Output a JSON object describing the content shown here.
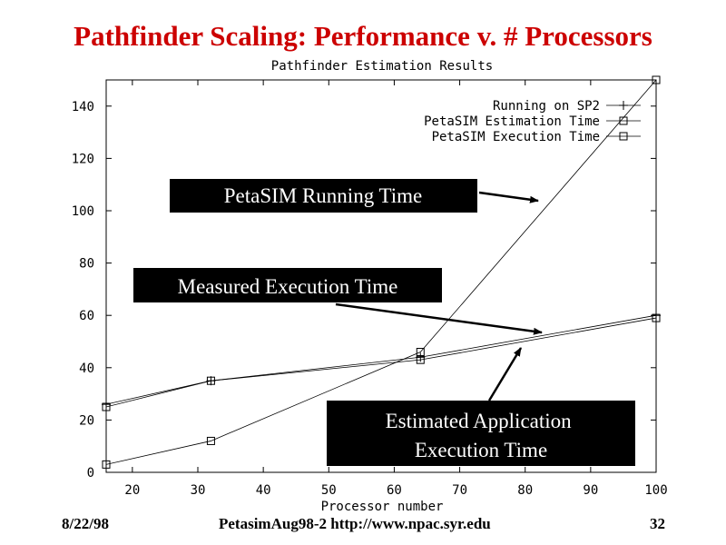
{
  "slide": {
    "title": "Pathfinder Scaling: Performance v. # Processors",
    "footer_date": "8/22/98",
    "footer_center": "PetasimAug98-2  http://www.npac.syr.edu",
    "page_number": "32"
  },
  "chart_data": {
    "type": "line",
    "title": "Pathfinder Estimation Results",
    "xlabel": "Processor number",
    "ylabel": "",
    "xlim": [
      16,
      100
    ],
    "ylim": [
      0,
      150
    ],
    "x_ticks": [
      20,
      30,
      40,
      50,
      60,
      70,
      80,
      90,
      100
    ],
    "y_ticks": [
      0,
      20,
      40,
      60,
      80,
      100,
      120,
      140
    ],
    "grid": false,
    "legend_position": "top-right",
    "series": [
      {
        "name": "Running on SP2",
        "marker": "plus",
        "x": [
          16,
          32,
          64,
          100
        ],
        "y": [
          26,
          35,
          44,
          60
        ]
      },
      {
        "name": "PetaSIM Estimation Time",
        "marker": "square",
        "x": [
          16,
          32,
          64,
          100
        ],
        "y": [
          3,
          12,
          46,
          150
        ]
      },
      {
        "name": "PetaSIM Execution Time",
        "marker": "square",
        "x": [
          16,
          32,
          64,
          100
        ],
        "y": [
          25,
          35,
          43,
          59
        ]
      }
    ],
    "annotations": [
      {
        "text": "PetaSIM Running Time",
        "points_to": {
          "x": 82,
          "y": 103
        }
      },
      {
        "text": "Measured Execution Time",
        "points_to": {
          "x": 83,
          "y": 52
        }
      },
      {
        "text": "Estimated Application Execution Time",
        "points_to": {
          "x": 82,
          "y": 47
        }
      }
    ]
  }
}
